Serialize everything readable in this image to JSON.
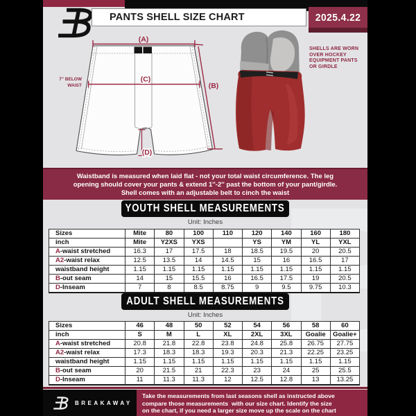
{
  "header": {
    "title": "PANTS SHELL SIZE CHART",
    "date": "2025.4.22"
  },
  "diagram": {
    "label_a": "(A)",
    "label_b": "(B)",
    "label_c": "(C)",
    "label_d": "(D)",
    "waist_note_line1": "7'' BELOW",
    "waist_note_line2": "WAIST",
    "photo_note_line1": "SHELLS ARE WORN",
    "photo_note_line2": "OVER HOCKEY",
    "photo_note_line3": "EQUIPMENT PANTS",
    "photo_note_line4": "OR GIRDLE"
  },
  "banner": {
    "lines": [
      "Waistband is measured when laid flat - not your total waist circumference. The leg",
      "opening should cover your pants & extend 1''-2'' past the bottom of your pant/girdle.",
      "Shell comes with an adjustable belt to cinch the waist"
    ]
  },
  "youth": {
    "heading": "YOUTH SHELL MEASUREMENTS",
    "unit": "Unit: Inches",
    "rows": [
      {
        "prefix": "",
        "label": "Sizes",
        "bold": true,
        "values": [
          "Mite",
          "80",
          "100",
          "110",
          "120",
          "140",
          "160",
          "180"
        ]
      },
      {
        "prefix": "",
        "label": "inch",
        "bold": true,
        "values": [
          "Mite",
          "Y2XS",
          "YXS",
          "",
          "YS",
          "YM",
          "YL",
          "YXL"
        ]
      },
      {
        "prefix": "A",
        "label": "-waist stretched",
        "values": [
          "16.3",
          "17",
          "17.5",
          "18",
          "18.5",
          "19.5",
          "20",
          "20.5"
        ]
      },
      {
        "prefix": "A2",
        "label": "-waist relax",
        "values": [
          "12.5",
          "13.5",
          "14",
          "14.5",
          "15",
          "16",
          "16.5",
          "17"
        ]
      },
      {
        "prefix": "",
        "label": "waistband height",
        "values": [
          "1.15",
          "1.15",
          "1.15",
          "1.15",
          "1.15",
          "1.15",
          "1.15",
          "1.15"
        ]
      },
      {
        "prefix": "B",
        "label": "-out seam",
        "values": [
          "14",
          "15",
          "15.5",
          "16",
          "16.5",
          "17.5",
          "19",
          "20.5"
        ]
      },
      {
        "prefix": "D",
        "label": "-Inseam",
        "values": [
          "7",
          "8",
          "8.5",
          "8.75",
          "9",
          "9.5",
          "9.75",
          "10.3"
        ]
      }
    ]
  },
  "adult": {
    "heading": "ADULT SHELL MEASUREMENTS",
    "unit": "Unit: Inches",
    "rows": [
      {
        "prefix": "",
        "label": "Sizes",
        "bold": true,
        "values": [
          "46",
          "48",
          "50",
          "52",
          "54",
          "56",
          "58",
          "60"
        ]
      },
      {
        "prefix": "",
        "label": "inch",
        "bold": true,
        "values": [
          "S",
          "M",
          "L",
          "XL",
          "2XL",
          "3XL",
          "Goalie",
          "Goalie+"
        ]
      },
      {
        "prefix": "A",
        "label": "-waist stretched",
        "values": [
          "20.8",
          "21.8",
          "22.8",
          "23.8",
          "24.8",
          "25.8",
          "26.75",
          "27.75"
        ]
      },
      {
        "prefix": "A2",
        "label": "-waist relax",
        "values": [
          "17.3",
          "18.3",
          "18.3",
          "19.3",
          "20.3",
          "21.3",
          "22.25",
          "23.25"
        ]
      },
      {
        "prefix": "",
        "label": "waistband height",
        "values": [
          "1.15",
          "1.15",
          "1.15",
          "1.15",
          "1.15",
          "1.15",
          "1.15",
          "1.15"
        ]
      },
      {
        "prefix": "B",
        "label": "-out seam",
        "values": [
          "20",
          "21.5",
          "21",
          "22.3",
          "23",
          "24",
          "25",
          "25.5"
        ]
      },
      {
        "prefix": "D",
        "label": "-Inseam",
        "values": [
          "11",
          "11.3",
          "11.3",
          "12",
          "12.5",
          "12.8",
          "13",
          "13.25"
        ]
      }
    ]
  },
  "footer": {
    "brand": "BREAKAWAY",
    "lines": [
      "Take the measurements from last seasons shell as instructed above",
      "compare those measurements  with our size chart. Identify the size",
      "on the chart, if you need a larger size move up the scale on the chart"
    ]
  },
  "watermark_letter": "B",
  "colors": {
    "maroon": "#8e2742",
    "banner_red": "#8a2b45",
    "date_box_red": "#8e3049",
    "footer_red": "#8e2742",
    "background": "#e3e3e5",
    "black": "#0b0b0b",
    "shell_red": "#a02e2e",
    "girdle_gray": "#8f8f90"
  }
}
